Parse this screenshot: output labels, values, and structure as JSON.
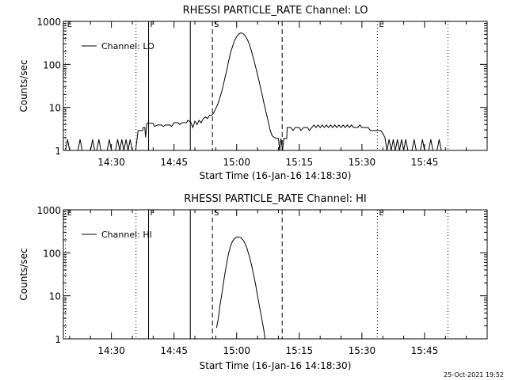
{
  "window": {
    "timestamp": "25-Oct-2021 19:52"
  },
  "chart_data": [
    {
      "type": "line",
      "title": "RHESSI PARTICLE_RATE Channel: LO",
      "xlabel": "Start Time (16-Jan-16 14:18:30)",
      "ylabel": "Counts/sec",
      "yscale": "log",
      "ylim": [
        1,
        1000
      ],
      "xlim_minutes_of_day": [
        858.5,
        960
      ],
      "xticks": [
        {
          "t": 870,
          "label": "14:30"
        },
        {
          "t": 885,
          "label": "14:45"
        },
        {
          "t": 900,
          "label": "15:00"
        },
        {
          "t": 915,
          "label": "15:15"
        },
        {
          "t": 930,
          "label": "15:30"
        },
        {
          "t": 945,
          "label": "15:45"
        }
      ],
      "yticks": [
        {
          "v": 1,
          "label": "1"
        },
        {
          "v": 10,
          "label": "10"
        },
        {
          "v": 100,
          "label": "100"
        },
        {
          "v": 1000,
          "label": "1000"
        }
      ],
      "legend": {
        "label": "Channel: LO",
        "position": "top-left"
      },
      "markers": [
        {
          "t": 859.0,
          "style": "dotted",
          "label": "E"
        },
        {
          "t": 875.9,
          "style": "dotted",
          "label": ""
        },
        {
          "t": 878.9,
          "style": "solid",
          "label": "F"
        },
        {
          "t": 888.9,
          "style": "solid",
          "label": ""
        },
        {
          "t": 894.2,
          "style": "dashed",
          "label": "S"
        },
        {
          "t": 910.9,
          "style": "dashed",
          "label": ""
        },
        {
          "t": 933.7,
          "style": "dotted",
          "label": "E"
        },
        {
          "t": 950.6,
          "style": "dotted",
          "label": ""
        }
      ],
      "series": [
        {
          "name": "Channel: LO",
          "points": [
            [
              859.0,
              1.0
            ],
            [
              859.5,
              1.8
            ],
            [
              860.0,
              1.0
            ],
            [
              862.0,
              1.0
            ],
            [
              862.5,
              1.8
            ],
            [
              863.0,
              1.0
            ],
            [
              865.0,
              1.0
            ],
            [
              865.5,
              1.8
            ],
            [
              866.0,
              1.0
            ],
            [
              866.5,
              1.0
            ],
            [
              867.0,
              1.8
            ],
            [
              867.5,
              1.0
            ],
            [
              869.0,
              1.0
            ],
            [
              869.5,
              1.8
            ],
            [
              870.0,
              1.0
            ],
            [
              871.0,
              1.0
            ],
            [
              871.5,
              1.8
            ],
            [
              872.0,
              1.0
            ],
            [
              872.5,
              1.8
            ],
            [
              873.0,
              1.0
            ],
            [
              873.5,
              1.8
            ],
            [
              874.0,
              1.0
            ],
            [
              874.5,
              1.8
            ],
            [
              875.0,
              1.0
            ],
            [
              875.8,
              1.0
            ],
            [
              876.2,
              2.0
            ],
            [
              876.4,
              2.9
            ],
            [
              877.0,
              2.9
            ],
            [
              877.5,
              2.9
            ],
            [
              877.6,
              3.4
            ],
            [
              878.0,
              3.4
            ],
            [
              878.2,
              2.0
            ],
            [
              878.5,
              4.3
            ],
            [
              880.0,
              4.3
            ],
            [
              880.3,
              3.6
            ],
            [
              881.0,
              3.9
            ],
            [
              882.0,
              3.9
            ],
            [
              882.4,
              3.6
            ],
            [
              883.0,
              3.9
            ],
            [
              884.0,
              3.9
            ],
            [
              884.4,
              3.6
            ],
            [
              885.0,
              4.4
            ],
            [
              886.0,
              4.4
            ],
            [
              886.3,
              4.0
            ],
            [
              887.0,
              4.4
            ],
            [
              888.0,
              4.4
            ],
            [
              888.3,
              5.0
            ],
            [
              889.0,
              4.5
            ],
            [
              889.5,
              3.4
            ],
            [
              890.0,
              4.8
            ],
            [
              890.5,
              4.0
            ],
            [
              891.0,
              5.0
            ],
            [
              891.5,
              4.4
            ],
            [
              892.0,
              5.5
            ],
            [
              892.5,
              6.0
            ],
            [
              893.0,
              5.5
            ],
            [
              893.5,
              6.5
            ],
            [
              894.0,
              6.5
            ],
            [
              894.5,
              7.5
            ],
            [
              895.0,
              9.5
            ],
            [
              895.5,
              12.0
            ],
            [
              896.0,
              17.0
            ],
            [
              896.5,
              25.0
            ],
            [
              897.0,
              40.0
            ],
            [
              897.5,
              65.0
            ],
            [
              898.0,
              110.0
            ],
            [
              898.5,
              180.0
            ],
            [
              899.0,
              260.0
            ],
            [
              899.5,
              360.0
            ],
            [
              900.0,
              440.0
            ],
            [
              900.5,
              510.0
            ],
            [
              901.0,
              540.0
            ],
            [
              901.5,
              520.0
            ],
            [
              902.0,
              470.0
            ],
            [
              902.5,
              390.0
            ],
            [
              903.0,
              300.0
            ],
            [
              903.5,
              210.0
            ],
            [
              904.0,
              140.0
            ],
            [
              904.5,
              90.0
            ],
            [
              905.0,
              57.0
            ],
            [
              905.5,
              36.0
            ],
            [
              906.0,
              22.0
            ],
            [
              906.5,
              13.0
            ],
            [
              907.0,
              8.0
            ],
            [
              907.5,
              5.0
            ],
            [
              908.0,
              3.0
            ],
            [
              908.5,
              2.2
            ],
            [
              909.0,
              2.0
            ],
            [
              909.5,
              1.9
            ],
            [
              910.0,
              1.9
            ],
            [
              910.3,
              1.0
            ],
            [
              910.6,
              1.9
            ],
            [
              911.0,
              1.0
            ],
            [
              911.3,
              1.9
            ],
            [
              912.0,
              1.9
            ],
            [
              912.1,
              3.4
            ],
            [
              913.0,
              3.4
            ],
            [
              913.5,
              2.9
            ],
            [
              914.0,
              3.4
            ],
            [
              915.0,
              3.4
            ],
            [
              915.4,
              2.9
            ],
            [
              916.0,
              3.4
            ],
            [
              917.0,
              3.4
            ],
            [
              917.4,
              2.9
            ],
            [
              918.0,
              3.4
            ],
            [
              918.5,
              3.9
            ],
            [
              919.0,
              3.4
            ],
            [
              919.5,
              3.9
            ],
            [
              920.0,
              3.4
            ],
            [
              920.5,
              3.9
            ],
            [
              921.0,
              3.4
            ],
            [
              921.5,
              3.9
            ],
            [
              922.0,
              3.4
            ],
            [
              922.5,
              3.9
            ],
            [
              923.0,
              3.4
            ],
            [
              923.5,
              3.9
            ],
            [
              924.0,
              3.4
            ],
            [
              924.5,
              3.9
            ],
            [
              925.0,
              3.4
            ],
            [
              925.5,
              3.9
            ],
            [
              926.0,
              3.4
            ],
            [
              926.5,
              3.9
            ],
            [
              927.0,
              3.4
            ],
            [
              927.5,
              3.9
            ],
            [
              928.0,
              3.4
            ],
            [
              929.0,
              3.4
            ],
            [
              929.5,
              3.9
            ],
            [
              930.0,
              3.4
            ],
            [
              931.0,
              3.4
            ],
            [
              931.5,
              3.4
            ],
            [
              932.0,
              2.9
            ],
            [
              933.5,
              2.9
            ],
            [
              934.0,
              2.9
            ],
            [
              934.5,
              2.9
            ],
            [
              935.0,
              2.5
            ],
            [
              935.5,
              2.0
            ],
            [
              936.0,
              1.0
            ],
            [
              936.5,
              1.8
            ],
            [
              937.0,
              1.0
            ],
            [
              937.5,
              1.8
            ],
            [
              938.0,
              1.0
            ],
            [
              938.5,
              1.8
            ],
            [
              939.0,
              1.0
            ],
            [
              939.5,
              1.8
            ],
            [
              940.0,
              1.0
            ],
            [
              940.5,
              1.8
            ],
            [
              941.0,
              1.0
            ],
            [
              942.0,
              1.0
            ],
            [
              942.5,
              1.8
            ],
            [
              943.0,
              1.0
            ],
            [
              944.0,
              1.0
            ],
            [
              944.5,
              1.8
            ],
            [
              945.0,
              1.0
            ],
            [
              946.0,
              1.0
            ],
            [
              946.5,
              1.8
            ],
            [
              947.0,
              1.0
            ],
            [
              948.0,
              1.0
            ],
            [
              948.5,
              1.8
            ],
            [
              949.0,
              1.0
            ]
          ]
        }
      ]
    },
    {
      "type": "line",
      "title": "RHESSI PARTICLE_RATE Channel: HI",
      "xlabel": "Start Time (16-Jan-16 14:18:30)",
      "ylabel": "Counts/sec",
      "yscale": "log",
      "ylim": [
        1,
        1000
      ],
      "xlim_minutes_of_day": [
        858.5,
        960
      ],
      "xticks": [
        {
          "t": 870,
          "label": "14:30"
        },
        {
          "t": 885,
          "label": "14:45"
        },
        {
          "t": 900,
          "label": "15:00"
        },
        {
          "t": 915,
          "label": "15:15"
        },
        {
          "t": 930,
          "label": "15:30"
        },
        {
          "t": 945,
          "label": "15:45"
        }
      ],
      "yticks": [
        {
          "v": 1,
          "label": "1"
        },
        {
          "v": 10,
          "label": "10"
        },
        {
          "v": 100,
          "label": "100"
        },
        {
          "v": 1000,
          "label": "1000"
        }
      ],
      "legend": {
        "label": "Channel: HI",
        "position": "top-left"
      },
      "markers": [
        {
          "t": 859.0,
          "style": "dotted",
          "label": "E"
        },
        {
          "t": 875.9,
          "style": "dotted",
          "label": ""
        },
        {
          "t": 878.9,
          "style": "solid",
          "label": "F"
        },
        {
          "t": 888.9,
          "style": "solid",
          "label": ""
        },
        {
          "t": 894.2,
          "style": "dashed",
          "label": "S"
        },
        {
          "t": 910.9,
          "style": "dashed",
          "label": ""
        },
        {
          "t": 933.7,
          "style": "dotted",
          "label": "E"
        },
        {
          "t": 950.6,
          "style": "dotted",
          "label": ""
        }
      ],
      "series": [
        {
          "name": "Channel: HI",
          "points": [
            [
              895.2,
              1.8
            ],
            [
              895.6,
              3.0
            ],
            [
              896.0,
              6.0
            ],
            [
              896.5,
              12.0
            ],
            [
              897.0,
              25.0
            ],
            [
              897.5,
              50.0
            ],
            [
              898.0,
              90.0
            ],
            [
              898.5,
              140.0
            ],
            [
              899.0,
              185.0
            ],
            [
              899.5,
              215.0
            ],
            [
              900.0,
              232.0
            ],
            [
              900.5,
              235.0
            ],
            [
              901.0,
              225.0
            ],
            [
              901.5,
              200.0
            ],
            [
              902.0,
              165.0
            ],
            [
              902.5,
              125.0
            ],
            [
              903.0,
              85.0
            ],
            [
              903.5,
              55.0
            ],
            [
              904.0,
              33.0
            ],
            [
              904.5,
              19.0
            ],
            [
              905.0,
              10.0
            ],
            [
              905.5,
              5.5
            ],
            [
              906.0,
              3.0
            ],
            [
              906.5,
              1.6
            ],
            [
              906.8,
              1.0
            ]
          ]
        }
      ]
    }
  ]
}
